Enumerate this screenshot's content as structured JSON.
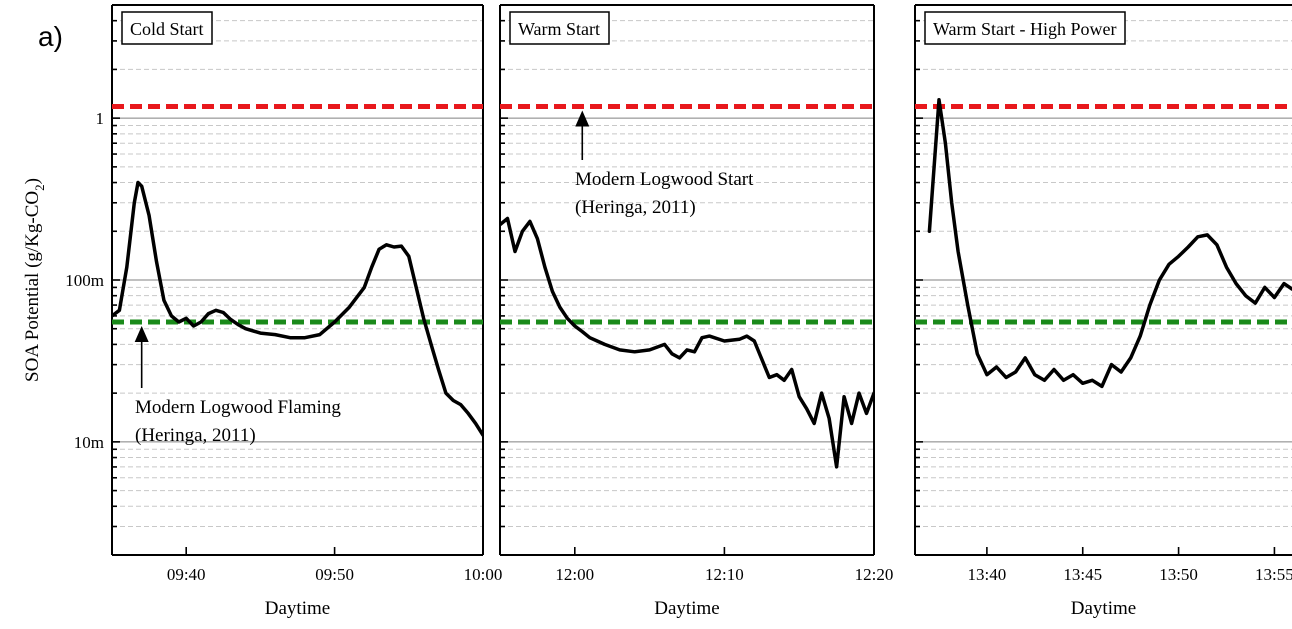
{
  "figure_label": "a)",
  "ylabel": "SOA Potential (g/Kg-CO2)",
  "ylabel_main": "SOA Potential (g/Kg-CO",
  "ylabel_sub": "2",
  "ylabel_close": ")",
  "colors": {
    "series": "#000000",
    "ref_start": "#e8181c",
    "ref_flaming": "#1a8a1a",
    "major_grid": "#808080",
    "minor_grid": "#c8c8c8"
  },
  "chart_data": [
    {
      "type": "line",
      "title": "Cold Start",
      "xlabel": "Daytime",
      "ylabel": "SOA Potential (g/Kg-CO2)",
      "yscale": "log",
      "ylim": [
        0.002,
        5
      ],
      "yticks": [
        0.01,
        0.1,
        1
      ],
      "ytick_labels": [
        "10m",
        "100m",
        "1"
      ],
      "xlim": [
        "09:35:00",
        "10:00:00"
      ],
      "xticks": [
        "09:40",
        "09:50",
        "10:00"
      ],
      "grid": "on",
      "series": [
        {
          "x": [
            "09:35:00",
            "09:35:30",
            "09:36:00",
            "09:36:30",
            "09:36:45",
            "09:37:00",
            "09:37:30",
            "09:38:00",
            "09:38:30",
            "09:39:00",
            "09:39:30",
            "09:40:00",
            "09:40:30",
            "09:41:00",
            "09:41:30",
            "09:42:00",
            "09:42:30",
            "09:43:00",
            "09:43:30",
            "09:44:00",
            "09:45:00",
            "09:46:00",
            "09:47:00",
            "09:48:00",
            "09:49:00",
            "09:50:00",
            "09:51:00",
            "09:52:00",
            "09:52:30",
            "09:53:00",
            "09:53:30",
            "09:54:00",
            "09:54:30",
            "09:55:00",
            "09:55:30",
            "09:56:00",
            "09:56:30",
            "09:57:00",
            "09:57:30",
            "09:58:00",
            "09:58:30",
            "09:59:00",
            "09:59:30",
            "10:00:00"
          ],
          "y": [
            0.06,
            0.065,
            0.12,
            0.3,
            0.4,
            0.38,
            0.25,
            0.13,
            0.075,
            0.06,
            0.055,
            0.058,
            0.052,
            0.055,
            0.062,
            0.065,
            0.063,
            0.057,
            0.053,
            0.05,
            0.047,
            0.046,
            0.044,
            0.044,
            0.046,
            0.055,
            0.068,
            0.09,
            0.12,
            0.155,
            0.165,
            0.16,
            0.162,
            0.14,
            0.09,
            0.058,
            0.04,
            0.028,
            0.02,
            0.018,
            0.017,
            0.015,
            0.013,
            0.011
          ]
        }
      ]
    },
    {
      "type": "line",
      "title": "Warm Start",
      "xlabel": "Daytime",
      "ylabel": "SOA Potential (g/Kg-CO2)",
      "yscale": "log",
      "ylim": [
        0.002,
        5
      ],
      "xlim": [
        "11:55:00",
        "12:20:00"
      ],
      "xticks": [
        "12:00",
        "12:10",
        "12:20"
      ],
      "grid": "on",
      "series": [
        {
          "x": [
            "11:55:00",
            "11:55:30",
            "11:56:00",
            "11:56:30",
            "11:57:00",
            "11:57:30",
            "11:58:00",
            "11:58:30",
            "11:59:00",
            "11:59:30",
            "12:00:00",
            "12:00:30",
            "12:01:00",
            "12:01:30",
            "12:02:00",
            "12:03:00",
            "12:04:00",
            "12:05:00",
            "12:06:00",
            "12:06:30",
            "12:07:00",
            "12:07:30",
            "12:08:00",
            "12:08:30",
            "12:09:00",
            "12:10:00",
            "12:11:00",
            "12:11:30",
            "12:12:00",
            "12:13:00",
            "12:13:30",
            "12:14:00",
            "12:14:30",
            "12:15:00",
            "12:15:30",
            "12:16:00",
            "12:16:30",
            "12:17:00",
            "12:17:30",
            "12:18:00",
            "12:18:30",
            "12:19:00",
            "12:19:30",
            "12:20:00"
          ],
          "y": [
            0.22,
            0.24,
            0.15,
            0.2,
            0.23,
            0.18,
            0.12,
            0.085,
            0.068,
            0.058,
            0.052,
            0.048,
            0.044,
            0.042,
            0.04,
            0.037,
            0.036,
            0.037,
            0.04,
            0.035,
            0.033,
            0.037,
            0.036,
            0.044,
            0.045,
            0.042,
            0.043,
            0.045,
            0.042,
            0.025,
            0.026,
            0.024,
            0.028,
            0.019,
            0.016,
            0.013,
            0.02,
            0.014,
            0.007,
            0.019,
            0.013,
            0.02,
            0.015,
            0.02
          ]
        }
      ]
    },
    {
      "type": "line",
      "title": "Warm Start - High Power",
      "xlabel": "Daytime",
      "ylabel": "SOA Potential (g/Kg-CO2)",
      "yscale": "log",
      "ylim": [
        0.002,
        5
      ],
      "xlim": [
        "13:36:15",
        "13:55:55"
      ],
      "xticks": [
        "13:40",
        "13:45",
        "13:50",
        "13:55"
      ],
      "grid": "on",
      "series": [
        {
          "x": [
            "13:37:00",
            "13:37:30",
            "13:37:50",
            "13:38:10",
            "13:38:30",
            "13:39:00",
            "13:39:30",
            "13:40:00",
            "13:40:30",
            "13:41:00",
            "13:41:30",
            "13:42:00",
            "13:42:30",
            "13:43:00",
            "13:43:30",
            "13:44:00",
            "13:44:30",
            "13:45:00",
            "13:45:30",
            "13:46:00",
            "13:46:30",
            "13:47:00",
            "13:47:30",
            "13:48:00",
            "13:48:30",
            "13:49:00",
            "13:49:30",
            "13:50:00",
            "13:50:30",
            "13:51:00",
            "13:51:30",
            "13:52:00",
            "13:52:30",
            "13:53:00",
            "13:53:30",
            "13:54:00",
            "13:54:30",
            "13:55:00",
            "13:55:30",
            "13:55:55"
          ],
          "y": [
            0.2,
            1.3,
            0.7,
            0.3,
            0.15,
            0.07,
            0.035,
            0.026,
            0.029,
            0.025,
            0.027,
            0.033,
            0.026,
            0.024,
            0.028,
            0.024,
            0.026,
            0.023,
            0.024,
            0.022,
            0.03,
            0.027,
            0.033,
            0.045,
            0.07,
            0.1,
            0.125,
            0.14,
            0.16,
            0.185,
            0.19,
            0.165,
            0.12,
            0.095,
            0.08,
            0.072,
            0.09,
            0.078,
            0.095,
            0.088
          ]
        }
      ]
    }
  ],
  "reference_lines": [
    {
      "y": 1.18,
      "style": "dashed",
      "color": "#e8181c"
    },
    {
      "y": 0.055,
      "style": "dashed",
      "color": "#1a8a1a"
    }
  ],
  "annotations": [
    {
      "panel": 0,
      "lines": [
        "Modern Logwood Flaming",
        "(Heringa, 2011)"
      ],
      "arrow_to": {
        "x": "09:37:00",
        "y": 0.055
      }
    },
    {
      "panel": 1,
      "lines": [
        "Modern Logwood Start",
        "(Heringa, 2011)"
      ],
      "arrow_to": {
        "x": "12:00:30",
        "y": 1.18
      }
    }
  ]
}
